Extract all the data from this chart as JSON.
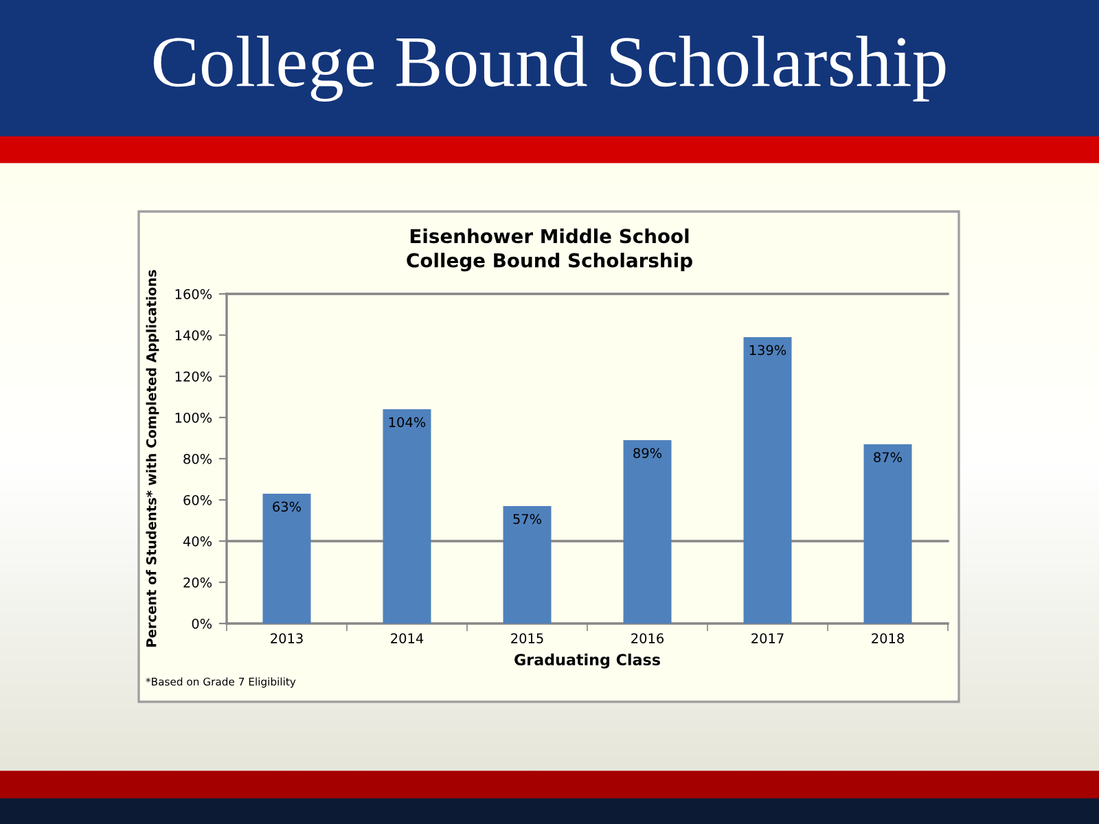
{
  "chart_data": {
    "type": "bar",
    "title": "College Bound Scholarship",
    "subtitle": "Eisenhower Middle School\nCollege Bound Scholarship",
    "xlabel": "Graduating Class",
    "ylabel": "Percent of Students* with Completed Applications",
    "categories": [
      "2013",
      "2014",
      "2015",
      "2016",
      "2017",
      "2018"
    ],
    "values": [
      63,
      104,
      57,
      89,
      139,
      87
    ],
    "value_labels": [
      "63%",
      "104%",
      "57%",
      "89%",
      "139%",
      "87%"
    ],
    "color": "#4f81bd",
    "ylim": [
      0,
      160
    ],
    "yticks": [
      {
        "value": 0,
        "label": "0%"
      },
      {
        "value": 20,
        "label": "20%"
      },
      {
        "value": 40,
        "label": "40%"
      },
      {
        "value": 60,
        "label": "60%"
      },
      {
        "value": 80,
        "label": "80%"
      },
      {
        "value": 100,
        "label": "100%"
      },
      {
        "value": 120,
        "label": "120%"
      },
      {
        "value": 140,
        "label": "140%"
      },
      {
        "value": 160,
        "label": "160%"
      }
    ],
    "ref_lines": [
      {
        "axis": "y",
        "value": 40,
        "color": "#868686"
      }
    ],
    "annotations": [
      "*Based on Grade 7 Eligibility"
    ]
  }
}
